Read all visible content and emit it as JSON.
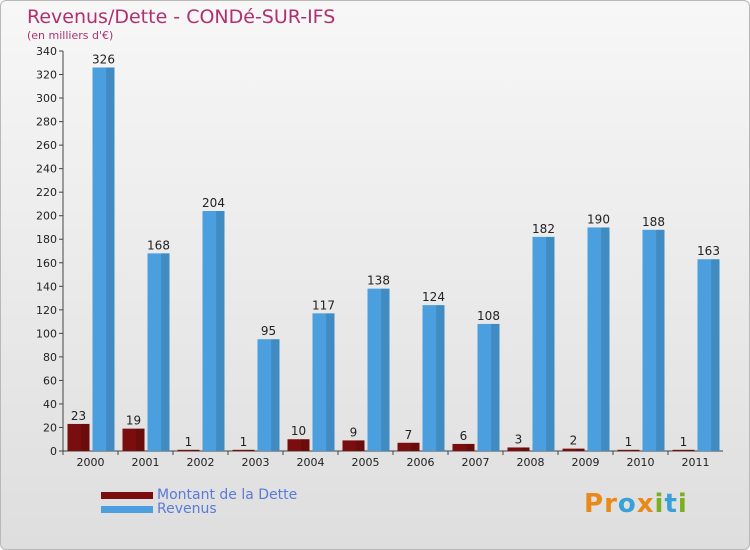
{
  "chart_data": {
    "type": "bar",
    "title": "Revenus/Dette - CONDé-SUR-IFS",
    "subtitle": "(en milliers d'€)",
    "categories": [
      "2000",
      "2001",
      "2002",
      "2003",
      "2004",
      "2005",
      "2006",
      "2007",
      "2008",
      "2009",
      "2010",
      "2011"
    ],
    "series": [
      {
        "name": "Montant de la Dette",
        "color": "#7a0e0e",
        "values": [
          23,
          19,
          1,
          1,
          10,
          9,
          7,
          6,
          3,
          2,
          1,
          1
        ]
      },
      {
        "name": "Revenus",
        "color": "#4b9fdf",
        "values": [
          326,
          168,
          204,
          95,
          117,
          138,
          124,
          108,
          182,
          190,
          188,
          163
        ]
      }
    ],
    "ylim": [
      0,
      340
    ],
    "yticks": [
      0,
      20,
      40,
      60,
      80,
      100,
      120,
      140,
      160,
      180,
      200,
      220,
      240,
      260,
      280,
      300,
      320,
      340
    ],
    "grid": false,
    "legend_position": "bottom-left"
  },
  "logo": {
    "text": "Proxiti",
    "letters": [
      "P",
      "r",
      "o",
      "x",
      "i",
      "t",
      "i"
    ],
    "colors": [
      "#e88a1a",
      "#e88a1a",
      "#3aa0d8",
      "#e88a1a",
      "#7ab020",
      "#3aa0d8",
      "#7ab020"
    ]
  }
}
